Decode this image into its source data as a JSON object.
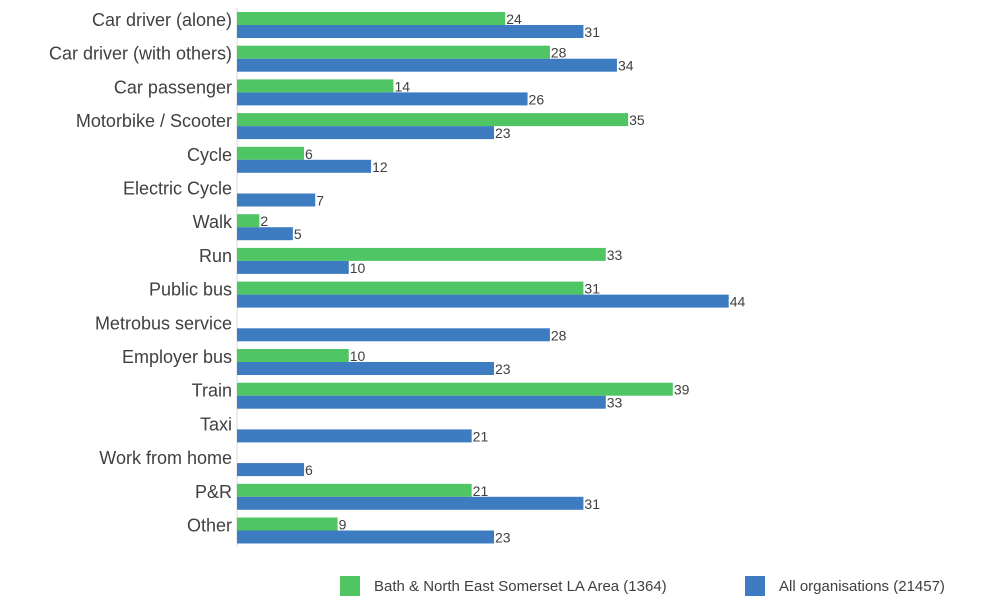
{
  "chart_data": {
    "type": "bar",
    "orientation": "horizontal",
    "categories": [
      "Car driver (alone)",
      "Car driver (with others)",
      "Car passenger",
      "Motorbike / Scooter",
      "Cycle",
      "Electric Cycle",
      "Walk",
      "Run",
      "Public bus",
      "Metrobus service",
      "Employer bus",
      "Train",
      "Taxi",
      "Work from home",
      "P&R",
      "Other"
    ],
    "series": [
      {
        "name": "Bath & North East Somerset LA Area (1364)",
        "color": "#4FC564",
        "values": [
          24,
          28,
          14,
          35,
          6,
          null,
          2,
          33,
          31,
          null,
          10,
          39,
          null,
          null,
          21,
          9
        ]
      },
      {
        "name": "All organisations (21457)",
        "color": "#3D7CC0",
        "values": [
          31,
          34,
          26,
          23,
          12,
          7,
          5,
          10,
          44,
          28,
          23,
          33,
          21,
          6,
          31,
          23
        ]
      }
    ],
    "xlim": [
      0,
      50
    ],
    "grid": false,
    "legend_position": "bottom-right",
    "data_labels": true
  }
}
